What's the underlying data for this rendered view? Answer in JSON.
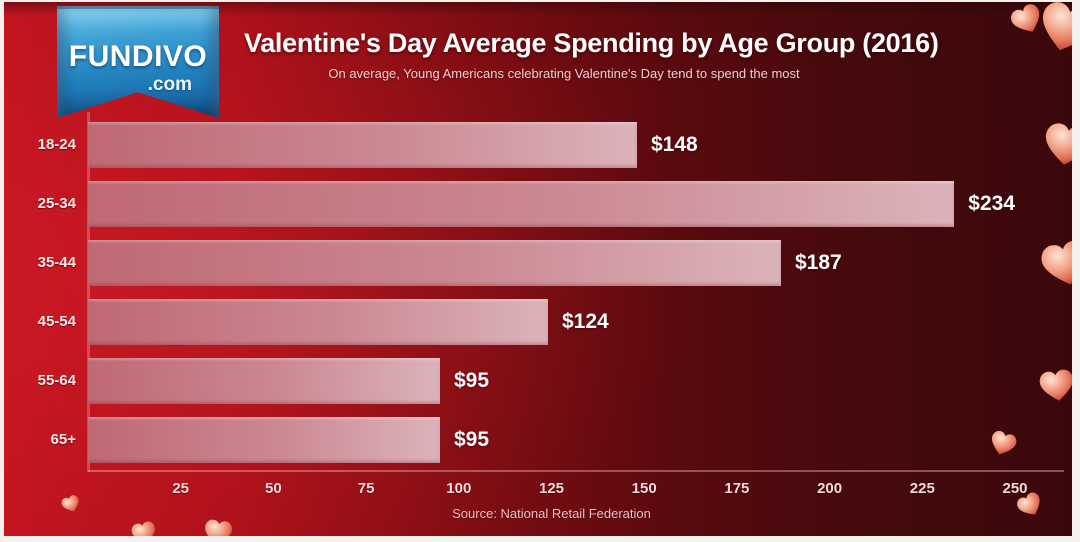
{
  "brand": {
    "name": "FUNDIVO",
    "tld": ".com"
  },
  "header": {
    "title": "Valentine's Day Average Spending by Age Group (2016)",
    "subtitle": "On average, Young Americans celebrating Valentine's Day tend to spend the most"
  },
  "chart_data": {
    "type": "bar",
    "orientation": "horizontal",
    "title": "Valentine's Day Average Spending by Age Group (2016)",
    "categories": [
      "18-24",
      "25-34",
      "35-44",
      "45-54",
      "55-64",
      "65+"
    ],
    "values": [
      148,
      234,
      187,
      124,
      95,
      95
    ],
    "value_labels": [
      "$148",
      "$234",
      "$187",
      "$124",
      "$95",
      "$95"
    ],
    "x_ticks": [
      25,
      50,
      75,
      100,
      125,
      150,
      175,
      200,
      225,
      250
    ],
    "xlim": [
      0,
      250
    ],
    "xlabel": "",
    "ylabel": "",
    "grid": false,
    "legend": null
  },
  "footer": {
    "source": "Source: National Retail Federation"
  },
  "icons": {
    "heart": "❤"
  },
  "style": {
    "background_left": "#c01420",
    "background_right": "#3a080b",
    "bar_gradient_start": "#bf6974",
    "bar_gradient_end": "#dcb3ba",
    "ribbon_blue_top": "#6cc8ee",
    "ribbon_blue_bottom": "#15568b",
    "heart_light": "#fde4d6",
    "heart_dark": "#9c2d20",
    "text_white": "#ffffff"
  }
}
